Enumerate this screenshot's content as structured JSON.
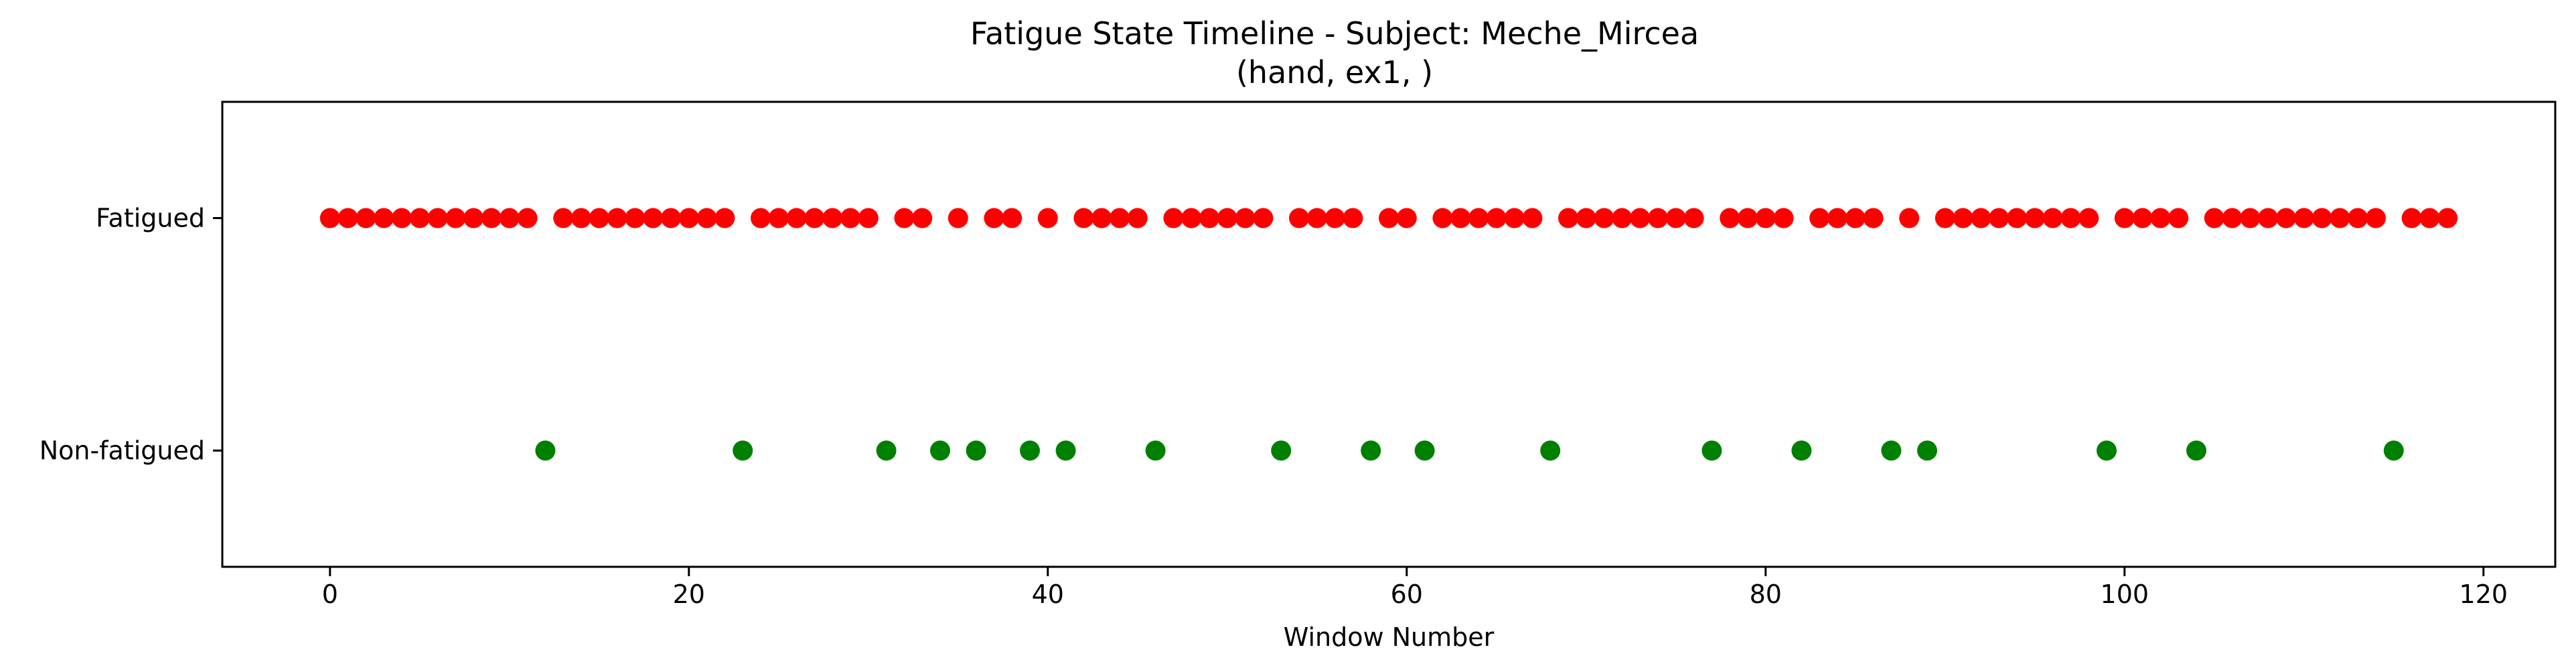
{
  "chart_data": {
    "type": "scatter",
    "title": "Fatigue State Timeline - Subject: Meche_Mircea",
    "subtitle": "(hand, ex1, )",
    "xlabel": "Window Number",
    "ylabel": "",
    "xlim": [
      -6,
      124
    ],
    "ylim": [
      -0.5,
      1.5
    ],
    "x_ticks": [
      0,
      20,
      40,
      60,
      80,
      100,
      120
    ],
    "y_ticks": [
      {
        "value": 1,
        "label": "Fatigued"
      },
      {
        "value": 0,
        "label": "Non-fatigued"
      }
    ],
    "grid": false,
    "colors": {
      "fatigued": "#ff0000",
      "non_fatigued": "#008000"
    },
    "series": [
      {
        "state": 1,
        "color": "#ff0000",
        "x": [
          0,
          1,
          2,
          3,
          4,
          5,
          6,
          7,
          8,
          9,
          10,
          11,
          13,
          14,
          15,
          16,
          17,
          18,
          19,
          20,
          21,
          22,
          24,
          25,
          26,
          27,
          28,
          29,
          30,
          32,
          33,
          35,
          37,
          38,
          40,
          42,
          43,
          44,
          45,
          47,
          48,
          49,
          50,
          51,
          52,
          54,
          55,
          56,
          57,
          59,
          60,
          62,
          63,
          64,
          65,
          66,
          67,
          69,
          70,
          71,
          72,
          73,
          74,
          75,
          76,
          78,
          79,
          80,
          81,
          83,
          84,
          85,
          86,
          88,
          90,
          91,
          92,
          93,
          94,
          95,
          96,
          97,
          98,
          100,
          101,
          102,
          103,
          105,
          106,
          107,
          108,
          109,
          110,
          111,
          112,
          113,
          114,
          116,
          117,
          118
        ]
      },
      {
        "state": 0,
        "color": "#008000",
        "x": [
          12,
          23,
          31,
          34,
          36,
          39,
          41,
          46,
          53,
          58,
          61,
          68,
          77,
          82,
          87,
          89,
          99,
          104,
          115
        ]
      }
    ]
  }
}
